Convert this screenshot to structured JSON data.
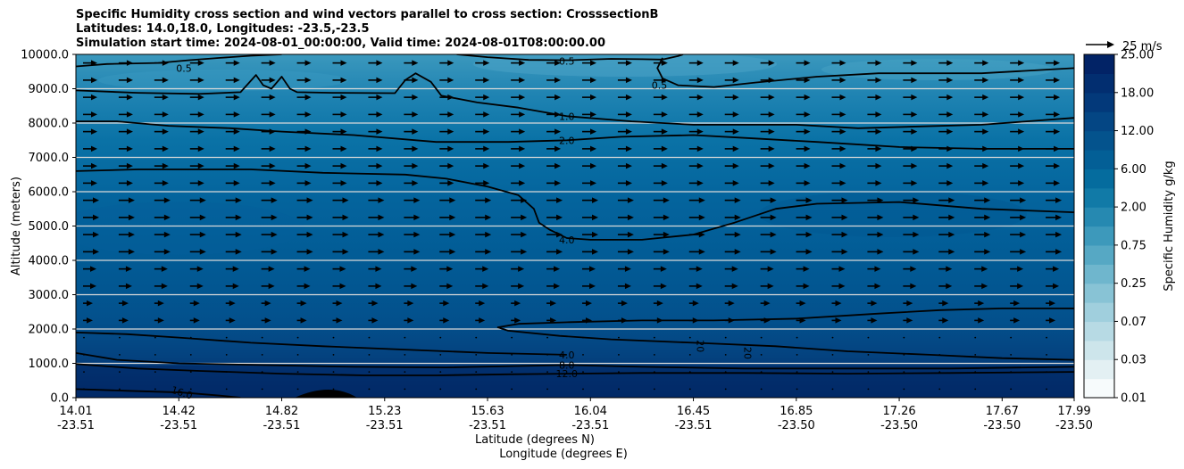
{
  "chart_data": {
    "type": "contour",
    "title_lines": [
      "Specific Humidity cross section and wind vectors parallel to cross section: CrosssectionB",
      "Latitudes: 14.0,18.0, Longitudes: -23.5,-23.5",
      "Simulation start time: 2024-08-01_00:00:00, Valid time: 2024-08-01T08:00:00.00"
    ],
    "ylabel": "Altitude (meters)",
    "xlabel_lat": "Latitude (degrees N)",
    "xlabel_lon": "Longitude (degrees E)",
    "ylim": [
      0,
      10000
    ],
    "yticks": [
      "0.0",
      "1000.0",
      "2000.0",
      "3000.0",
      "4000.0",
      "5000.0",
      "6000.0",
      "7000.0",
      "8000.0",
      "9000.0",
      "10000.0"
    ],
    "ytick_values": [
      0,
      1000,
      2000,
      3000,
      4000,
      5000,
      6000,
      7000,
      8000,
      9000,
      10000
    ],
    "xticks_lat": [
      "14.01",
      "14.42",
      "14.82",
      "15.23",
      "15.63",
      "16.04",
      "16.45",
      "16.85",
      "17.26",
      "17.67",
      "17.99"
    ],
    "xticks_lon": [
      "-23.51",
      "-23.51",
      "-23.51",
      "-23.51",
      "-23.51",
      "-23.51",
      "-23.51",
      "-23.50",
      "-23.50",
      "-23.50",
      "-23.50"
    ],
    "xtick_positions": [
      0,
      1,
      2,
      3,
      4,
      5,
      6,
      7,
      8,
      9,
      9.7
    ],
    "x_range": [
      0,
      9.7
    ],
    "colorbar": {
      "label": "Specific Humidity g/kg",
      "tick_labels": [
        "0.01",
        "0.03",
        "0.07",
        "0.25",
        "0.75",
        "2.00",
        "6.00",
        "12.00",
        "18.00",
        "25.00"
      ],
      "n_levels": 18
    },
    "quiver_key": "25 m/s",
    "contour_labels": [
      {
        "text": "0.5",
        "x": 1.05,
        "y": 9600
      },
      {
        "text": "0.5",
        "x": 4.77,
        "y": 9800
      },
      {
        "text": "0.5",
        "x": 5.67,
        "y": 9100
      },
      {
        "text": "1.0",
        "x": 4.77,
        "y": 8200
      },
      {
        "text": "2.0",
        "x": 4.77,
        "y": 7500
      },
      {
        "text": "4.0",
        "x": 4.77,
        "y": 4600
      },
      {
        "text": "4.0",
        "x": 4.77,
        "y": 1250
      },
      {
        "text": "8.0",
        "x": 4.77,
        "y": 950
      },
      {
        "text": "12.0",
        "x": 4.77,
        "y": 700
      },
      {
        "text": "16.0",
        "x": 1.03,
        "y": 150
      },
      {
        "text": "20",
        "x": 6.07,
        "y": 1500
      },
      {
        "text": "20",
        "x": 6.53,
        "y": 1300
      }
    ],
    "contours": [
      {
        "level": 0.5,
        "points": [
          [
            0,
            9650
          ],
          [
            0.3,
            9720
          ],
          [
            0.8,
            9750
          ],
          [
            1.1,
            9830
          ],
          [
            1.4,
            9900
          ],
          [
            1.7,
            9960
          ],
          [
            2.0,
            10000
          ]
        ]
      },
      {
        "level": 0.5,
        "points": [
          [
            3.7,
            10000
          ],
          [
            4.0,
            9920
          ],
          [
            4.4,
            9840
          ],
          [
            4.8,
            9830
          ],
          [
            5.2,
            9870
          ],
          [
            5.5,
            9860
          ],
          [
            5.7,
            9850
          ],
          [
            5.85,
            9950
          ],
          [
            5.9,
            10000
          ]
        ]
      },
      {
        "level": 0.5,
        "points": [
          [
            5.7,
            9900
          ],
          [
            5.65,
            9600
          ],
          [
            5.7,
            9300
          ],
          [
            5.85,
            9100
          ],
          [
            6.2,
            9050
          ],
          [
            6.6,
            9180
          ],
          [
            7.2,
            9350
          ],
          [
            7.8,
            9450
          ],
          [
            8.3,
            9450
          ],
          [
            8.8,
            9450
          ],
          [
            9.7,
            9600
          ]
        ]
      },
      {
        "level": 1.0,
        "points": [
          [
            0,
            8950
          ],
          [
            0.6,
            8880
          ],
          [
            1.2,
            8850
          ],
          [
            1.6,
            8900
          ],
          [
            1.75,
            9400
          ],
          [
            1.82,
            9100
          ],
          [
            1.9,
            9000
          ],
          [
            2.0,
            9350
          ],
          [
            2.08,
            9000
          ],
          [
            2.15,
            8900
          ],
          [
            2.5,
            8880
          ],
          [
            3.1,
            8870
          ],
          [
            3.2,
            9250
          ],
          [
            3.3,
            9450
          ],
          [
            3.45,
            9200
          ],
          [
            3.55,
            8800
          ],
          [
            3.9,
            8600
          ],
          [
            4.3,
            8450
          ],
          [
            4.77,
            8200
          ],
          [
            5.4,
            8050
          ],
          [
            6.0,
            7950
          ],
          [
            7.0,
            7950
          ],
          [
            7.6,
            7850
          ],
          [
            8.2,
            7900
          ],
          [
            8.8,
            7950
          ],
          [
            9.7,
            8150
          ]
        ]
      },
      {
        "level": 2.0,
        "points": [
          [
            0,
            8050
          ],
          [
            0.4,
            8050
          ],
          [
            0.9,
            7920
          ],
          [
            1.5,
            7850
          ],
          [
            2.0,
            7750
          ],
          [
            2.7,
            7650
          ],
          [
            3.5,
            7450
          ],
          [
            4.2,
            7450
          ],
          [
            4.77,
            7500
          ],
          [
            5.3,
            7600
          ],
          [
            6.0,
            7650
          ],
          [
            6.6,
            7550
          ],
          [
            7.2,
            7450
          ],
          [
            8.0,
            7300
          ],
          [
            8.8,
            7250
          ],
          [
            9.7,
            7250
          ]
        ]
      },
      {
        "level": 4.0,
        "points": [
          [
            0,
            6600
          ],
          [
            0.6,
            6650
          ],
          [
            1.7,
            6650
          ],
          [
            2.4,
            6550
          ],
          [
            3.2,
            6500
          ],
          [
            3.6,
            6380
          ],
          [
            4.0,
            6150
          ],
          [
            4.3,
            5900
          ],
          [
            4.45,
            5500
          ],
          [
            4.5,
            5100
          ],
          [
            4.6,
            4900
          ],
          [
            4.77,
            4650
          ],
          [
            5.0,
            4600
          ],
          [
            5.5,
            4600
          ],
          [
            6.0,
            4750
          ],
          [
            6.4,
            5100
          ],
          [
            6.8,
            5500
          ],
          [
            7.2,
            5650
          ],
          [
            8.0,
            5700
          ],
          [
            8.8,
            5500
          ],
          [
            9.7,
            5400
          ]
        ]
      },
      {
        "level": 4.0,
        "points": [
          [
            9.7,
            2600
          ],
          [
            9.0,
            2600
          ],
          [
            8.4,
            2550
          ],
          [
            7.8,
            2450
          ],
          [
            7.0,
            2300
          ],
          [
            6.2,
            2250
          ],
          [
            5.5,
            2250
          ],
          [
            4.8,
            2200
          ],
          [
            4.3,
            2150
          ],
          [
            4.1,
            2050
          ],
          [
            4.2,
            1950
          ],
          [
            4.7,
            1800
          ],
          [
            5.2,
            1700
          ],
          [
            6.0,
            1600
          ],
          [
            6.8,
            1500
          ],
          [
            7.5,
            1350
          ],
          [
            8.3,
            1250
          ],
          [
            9.0,
            1150
          ],
          [
            9.7,
            1100
          ]
        ]
      },
      {
        "level": 4.0,
        "points": [
          [
            0,
            1900
          ],
          [
            0.5,
            1850
          ],
          [
            1.0,
            1750
          ],
          [
            1.7,
            1600
          ],
          [
            2.4,
            1500
          ],
          [
            3.2,
            1400
          ],
          [
            4.0,
            1300
          ],
          [
            4.77,
            1250
          ]
        ]
      },
      {
        "level": 8.0,
        "points": [
          [
            0,
            1300
          ],
          [
            0.4,
            1100
          ],
          [
            1.0,
            1000
          ],
          [
            1.8,
            950
          ],
          [
            2.7,
            900
          ],
          [
            3.6,
            880
          ],
          [
            4.77,
            950
          ],
          [
            5.5,
            900
          ],
          [
            6.5,
            850
          ],
          [
            7.5,
            850
          ],
          [
            8.5,
            850
          ],
          [
            9.7,
            900
          ]
        ]
      },
      {
        "level": 12.0,
        "points": [
          [
            0,
            980
          ],
          [
            0.6,
            850
          ],
          [
            1.2,
            780
          ],
          [
            2.0,
            700
          ],
          [
            2.8,
            650
          ],
          [
            3.5,
            650
          ],
          [
            4.2,
            680
          ],
          [
            4.77,
            700
          ],
          [
            5.5,
            720
          ],
          [
            6.5,
            720
          ],
          [
            7.5,
            700
          ],
          [
            8.5,
            720
          ],
          [
            9.7,
            750
          ]
        ]
      },
      {
        "level": 16.0,
        "points": [
          [
            0,
            250
          ],
          [
            0.5,
            200
          ],
          [
            1.03,
            150
          ],
          [
            1.4,
            60
          ],
          [
            1.6,
            0
          ]
        ]
      }
    ]
  }
}
